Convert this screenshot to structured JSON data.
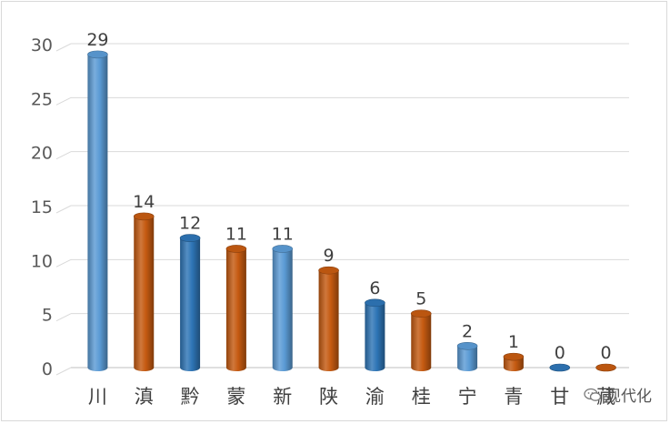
{
  "chart_data": {
    "type": "bar",
    "categories": [
      "川",
      "滇",
      "黔",
      "蒙",
      "新",
      "陕",
      "渝",
      "桂",
      "宁",
      "青",
      "甘",
      "藏"
    ],
    "values": [
      29,
      14,
      12,
      11,
      11,
      9,
      6,
      5,
      2,
      1,
      0,
      0
    ],
    "colors": [
      "#5b9bd5",
      "#c55a11",
      "#2e75b6",
      "#c55a11",
      "#5b9bd5",
      "#c55a11",
      "#2e75b6",
      "#c55a11",
      "#5b9bd5",
      "#c55a11",
      "#2e75b6",
      "#c55a11"
    ],
    "ylim": [
      0,
      30
    ],
    "yticks": [
      0,
      5,
      10,
      15,
      20,
      25,
      30
    ],
    "grid": true,
    "style": "3d-cylinder",
    "data_labels": true
  },
  "watermark": {
    "text": "现代化",
    "icon": "wechat-icon"
  }
}
